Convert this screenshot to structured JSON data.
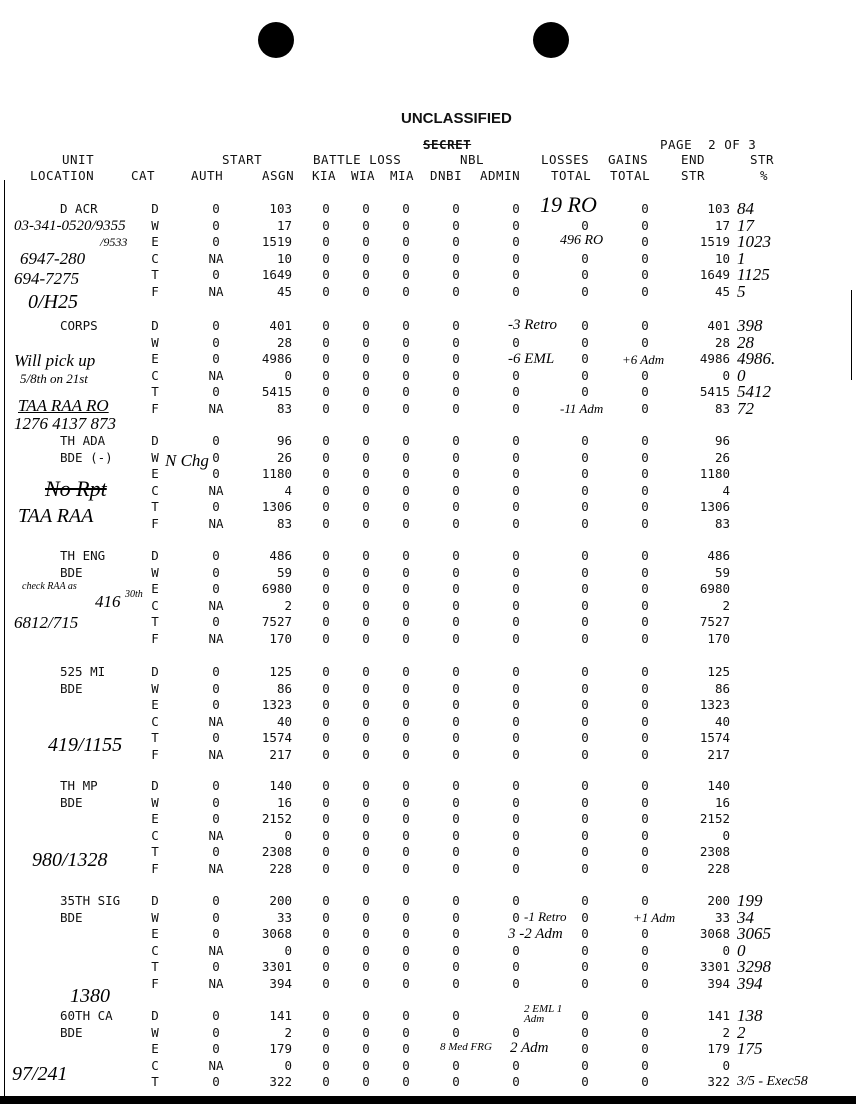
{
  "header": {
    "classification": "UNCLASSIFIED",
    "struck_classification": "SECRET",
    "page_label": "PAGE  2 OF 3"
  },
  "columns": {
    "unit": "UNIT",
    "location": "LOCATION",
    "cat": "CAT",
    "start": "START",
    "auth": "AUTH",
    "asgn": "ASGN",
    "battle_loss": "BATTLE LOSS",
    "kia": "KIA",
    "wia": "WIA",
    "mia": "MIA",
    "nbl": "NBL",
    "dnbi": "DNBI",
    "admin": "ADMIN",
    "losses": "LOSSES",
    "losses_total": "TOTAL",
    "gains": "GAINS",
    "gains_total": "TOTAL",
    "end": "END",
    "end_str": "STR",
    "str": "STR",
    "pct": "%"
  },
  "units": [
    {
      "name": [
        "D ACR",
        ""
      ],
      "rows": [
        [
          "D",
          "0",
          "103",
          "0",
          "0",
          "0",
          "0",
          "0",
          "",
          "0",
          "103"
        ],
        [
          "W",
          "0",
          "17",
          "0",
          "0",
          "0",
          "0",
          "0",
          "0",
          "0",
          "17"
        ],
        [
          "E",
          "0",
          "1519",
          "0",
          "0",
          "0",
          "0",
          "0",
          "",
          "0",
          "1519"
        ],
        [
          "C",
          "NA",
          "10",
          "0",
          "0",
          "0",
          "0",
          "0",
          "0",
          "0",
          "10"
        ],
        [
          "T",
          "0",
          "1649",
          "0",
          "0",
          "0",
          "0",
          "0",
          "0",
          "0",
          "1649"
        ],
        [
          "F",
          "NA",
          "45",
          "0",
          "0",
          "0",
          "0",
          "0",
          "0",
          "0",
          "45"
        ]
      ]
    },
    {
      "name": [
        "CORPS",
        ""
      ],
      "rows": [
        [
          "D",
          "0",
          "401",
          "0",
          "0",
          "0",
          "0",
          "",
          "0",
          "0",
          "401"
        ],
        [
          "W",
          "0",
          "28",
          "0",
          "0",
          "0",
          "0",
          "0",
          "0",
          "0",
          "28"
        ],
        [
          "E",
          "0",
          "4986",
          "0",
          "0",
          "0",
          "0",
          "",
          "0",
          "",
          "4986"
        ],
        [
          "C",
          "NA",
          "0",
          "0",
          "0",
          "0",
          "0",
          "0",
          "0",
          "0",
          "0"
        ],
        [
          "T",
          "0",
          "5415",
          "0",
          "0",
          "0",
          "0",
          "0",
          "0",
          "0",
          "5415"
        ],
        [
          "F",
          "NA",
          "83",
          "0",
          "0",
          "0",
          "0",
          "0",
          "",
          "0",
          "83"
        ]
      ]
    },
    {
      "name": [
        "TH ADA",
        "BDE (-)"
      ],
      "rows": [
        [
          "D",
          "0",
          "96",
          "0",
          "0",
          "0",
          "0",
          "0",
          "0",
          "0",
          "96"
        ],
        [
          "W",
          "0",
          "26",
          "0",
          "0",
          "0",
          "0",
          "0",
          "0",
          "0",
          "26"
        ],
        [
          "E",
          "0",
          "1180",
          "0",
          "0",
          "0",
          "0",
          "0",
          "0",
          "0",
          "1180"
        ],
        [
          "C",
          "NA",
          "4",
          "0",
          "0",
          "0",
          "0",
          "0",
          "0",
          "0",
          "4"
        ],
        [
          "T",
          "0",
          "1306",
          "0",
          "0",
          "0",
          "0",
          "0",
          "0",
          "0",
          "1306"
        ],
        [
          "F",
          "NA",
          "83",
          "0",
          "0",
          "0",
          "0",
          "0",
          "0",
          "0",
          "83"
        ]
      ]
    },
    {
      "name": [
        "TH ENG",
        "BDE"
      ],
      "rows": [
        [
          "D",
          "0",
          "486",
          "0",
          "0",
          "0",
          "0",
          "0",
          "0",
          "0",
          "486"
        ],
        [
          "W",
          "0",
          "59",
          "0",
          "0",
          "0",
          "0",
          "0",
          "0",
          "0",
          "59"
        ],
        [
          "E",
          "0",
          "6980",
          "0",
          "0",
          "0",
          "0",
          "0",
          "0",
          "0",
          "6980"
        ],
        [
          "C",
          "NA",
          "2",
          "0",
          "0",
          "0",
          "0",
          "0",
          "0",
          "0",
          "2"
        ],
        [
          "T",
          "0",
          "7527",
          "0",
          "0",
          "0",
          "0",
          "0",
          "0",
          "0",
          "7527"
        ],
        [
          "F",
          "NA",
          "170",
          "0",
          "0",
          "0",
          "0",
          "0",
          "0",
          "0",
          "170"
        ]
      ]
    },
    {
      "name": [
        "525 MI",
        "BDE"
      ],
      "rows": [
        [
          "D",
          "0",
          "125",
          "0",
          "0",
          "0",
          "0",
          "0",
          "0",
          "0",
          "125"
        ],
        [
          "W",
          "0",
          "86",
          "0",
          "0",
          "0",
          "0",
          "0",
          "0",
          "0",
          "86"
        ],
        [
          "E",
          "0",
          "1323",
          "0",
          "0",
          "0",
          "0",
          "0",
          "0",
          "0",
          "1323"
        ],
        [
          "C",
          "NA",
          "40",
          "0",
          "0",
          "0",
          "0",
          "0",
          "0",
          "0",
          "40"
        ],
        [
          "T",
          "0",
          "1574",
          "0",
          "0",
          "0",
          "0",
          "0",
          "0",
          "0",
          "1574"
        ],
        [
          "F",
          "NA",
          "217",
          "0",
          "0",
          "0",
          "0",
          "0",
          "0",
          "0",
          "217"
        ]
      ]
    },
    {
      "name": [
        "TH MP",
        "BDE"
      ],
      "rows": [
        [
          "D",
          "0",
          "140",
          "0",
          "0",
          "0",
          "0",
          "0",
          "0",
          "0",
          "140"
        ],
        [
          "W",
          "0",
          "16",
          "0",
          "0",
          "0",
          "0",
          "0",
          "0",
          "0",
          "16"
        ],
        [
          "E",
          "0",
          "2152",
          "0",
          "0",
          "0",
          "0",
          "0",
          "0",
          "0",
          "2152"
        ],
        [
          "C",
          "NA",
          "0",
          "0",
          "0",
          "0",
          "0",
          "0",
          "0",
          "0",
          "0"
        ],
        [
          "T",
          "0",
          "2308",
          "0",
          "0",
          "0",
          "0",
          "0",
          "0",
          "0",
          "2308"
        ],
        [
          "F",
          "NA",
          "228",
          "0",
          "0",
          "0",
          "0",
          "0",
          "0",
          "0",
          "228"
        ]
      ]
    },
    {
      "name": [
        "35TH SIG",
        "BDE"
      ],
      "rows": [
        [
          "D",
          "0",
          "200",
          "0",
          "0",
          "0",
          "0",
          "0",
          "0",
          "0",
          "200"
        ],
        [
          "W",
          "0",
          "33",
          "0",
          "0",
          "0",
          "0",
          "0",
          "0",
          "",
          "33"
        ],
        [
          "E",
          "0",
          "3068",
          "0",
          "0",
          "0",
          "0",
          "",
          "0",
          "0",
          "3068"
        ],
        [
          "C",
          "NA",
          "0",
          "0",
          "0",
          "0",
          "0",
          "0",
          "0",
          "0",
          "0"
        ],
        [
          "T",
          "0",
          "3301",
          "0",
          "0",
          "0",
          "0",
          "0",
          "0",
          "0",
          "3301"
        ],
        [
          "F",
          "NA",
          "394",
          "0",
          "0",
          "0",
          "0",
          "0",
          "0",
          "0",
          "394"
        ]
      ]
    },
    {
      "name": [
        "60TH CA",
        "BDE"
      ],
      "rows": [
        [
          "D",
          "0",
          "141",
          "0",
          "0",
          "0",
          "0",
          "",
          "0",
          "0",
          "141"
        ],
        [
          "W",
          "0",
          "2",
          "0",
          "0",
          "0",
          "0",
          "0",
          "0",
          "0",
          "2"
        ],
        [
          "E",
          "0",
          "179",
          "0",
          "0",
          "0",
          "",
          "",
          "0",
          "0",
          "179"
        ],
        [
          "C",
          "NA",
          "0",
          "0",
          "0",
          "0",
          "0",
          "0",
          "0",
          "0",
          "0"
        ],
        [
          "T",
          "0",
          "322",
          "0",
          "0",
          "0",
          "0",
          "0",
          "0",
          "0",
          "322"
        ]
      ]
    }
  ],
  "handwritten": {
    "a1": "03-341-0520/9355",
    "a2": "/9533",
    "a3": "6947-280",
    "a4": "694-7275",
    "a5": "0/H25",
    "a6": "19 RO",
    "a7": "496 RO",
    "s1": [
      "84",
      "17",
      "1023",
      "1",
      "1125",
      "5"
    ],
    "b1": "Will pick up",
    "b2": "5/8th on 21st",
    "b3": "-3 Retro",
    "b4": "-6 EML",
    "b5": "+6 Adm",
    "b6": "-11 Adm",
    "s2": [
      "398",
      "28",
      "4986.",
      "0",
      "5412",
      "72"
    ],
    "b7": "TAA RAA RO",
    "b8": "1276 4137 873",
    "c1": "N Chg",
    "c2": "No Rpt",
    "c3": "TAA RAA",
    "d1": "check RAA as",
    "d2": "416",
    "d3": "30th",
    "d4": "6812/715",
    "e1": "419/1155",
    "f1": "980/1328",
    "g1": "-1 Retro",
    "g2": "3 -2 Adm",
    "g3": "+1 Adm",
    "s7": [
      "199",
      "34",
      "3065",
      "0",
      "3298",
      "394"
    ],
    "h0": "1380",
    "h1": "2 EML 1 Adm",
    "h2": "8 Med FRG",
    "h3": "2 Adm",
    "h4": "97/241",
    "s8": [
      "138",
      "2",
      "175",
      "",
      "3/5 - Exec58"
    ]
  }
}
